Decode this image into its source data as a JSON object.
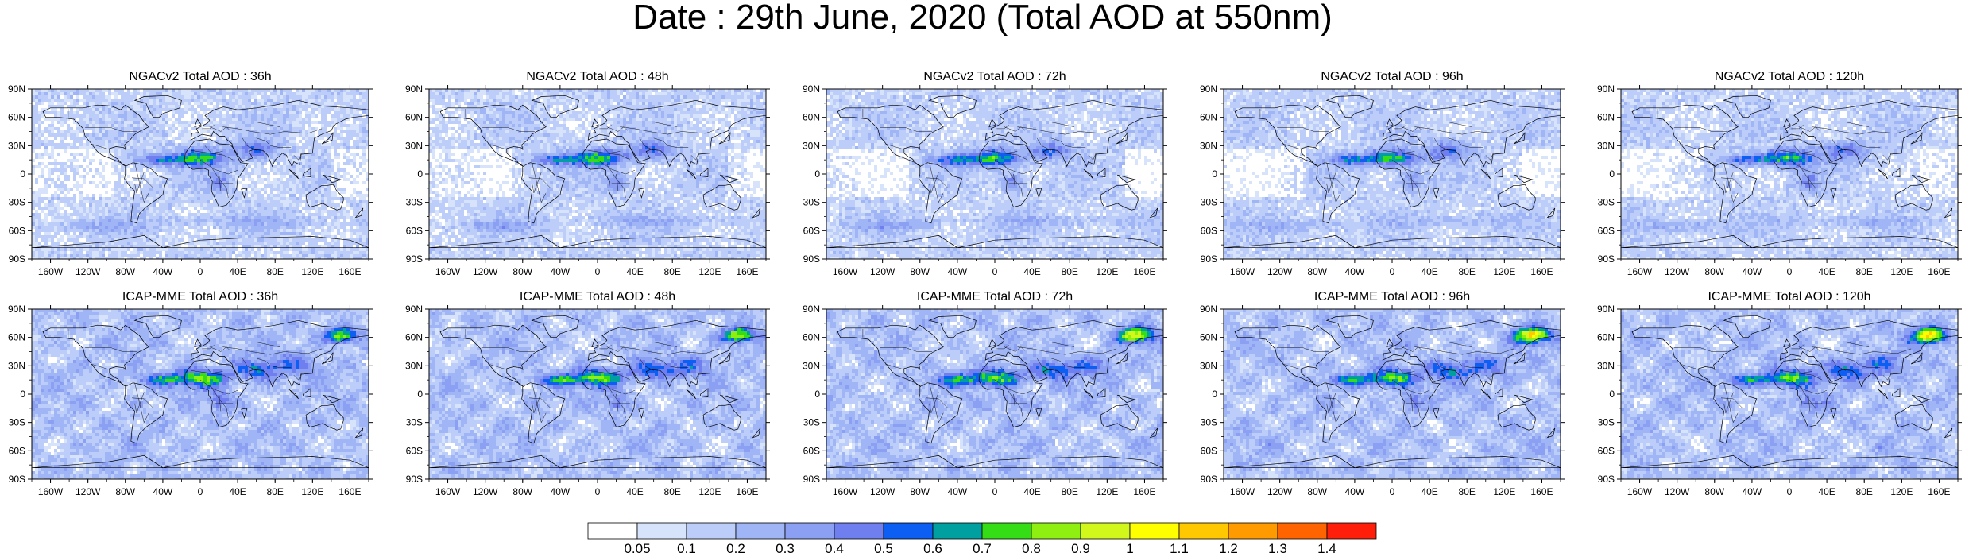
{
  "title": "Date : 29th June, 2020 (Total AOD at 550nm)",
  "lat_ticks": [
    "90N",
    "60N",
    "30N",
    "0",
    "30S",
    "60S",
    "90S"
  ],
  "lon_ticks": [
    "160W",
    "120W",
    "80W",
    "40W",
    "0",
    "40E",
    "80E",
    "120E",
    "160E"
  ],
  "lon_values": [
    -160,
    -120,
    -80,
    -40,
    0,
    40,
    80,
    120,
    160
  ],
  "lat_values": [
    90,
    60,
    30,
    0,
    -30,
    -60,
    -90
  ],
  "panels": [
    {
      "title": "NGACv2 Total AOD : 36h",
      "model": "ngac",
      "lead": 36
    },
    {
      "title": "NGACv2 Total AOD : 48h",
      "model": "ngac",
      "lead": 48
    },
    {
      "title": "NGACv2 Total AOD : 72h",
      "model": "ngac",
      "lead": 72
    },
    {
      "title": "NGACv2 Total AOD : 96h",
      "model": "ngac",
      "lead": 96
    },
    {
      "title": "NGACv2 Total AOD : 120h",
      "model": "ngac",
      "lead": 120
    },
    {
      "title": "ICAP-MME Total AOD : 36h",
      "model": "icap",
      "lead": 36
    },
    {
      "title": "ICAP-MME Total AOD : 48h",
      "model": "icap",
      "lead": 48
    },
    {
      "title": "ICAP-MME Total AOD : 72h",
      "model": "icap",
      "lead": 72
    },
    {
      "title": "ICAP-MME Total AOD : 96h",
      "model": "icap",
      "lead": 96
    },
    {
      "title": "ICAP-MME Total AOD : 120h",
      "model": "icap",
      "lead": 120
    }
  ],
  "colorbar": {
    "labels": [
      "0.05",
      "0.1",
      "0.2",
      "0.3",
      "0.4",
      "0.5",
      "0.6",
      "0.7",
      "0.8",
      "0.9",
      "1",
      "1.1",
      "1.2",
      "1.3",
      "1.4"
    ],
    "colors": [
      "#ffffff",
      "#d7e3fb",
      "#bccdf9",
      "#9fb5f5",
      "#8ba0f2",
      "#6f7ff0",
      "#0c5ff2",
      "#00a0a0",
      "#34dd15",
      "#8fef10",
      "#d2f71a",
      "#ffff00",
      "#ffc800",
      "#ff9b00",
      "#ff6400",
      "#ff1e0a"
    ]
  }
}
